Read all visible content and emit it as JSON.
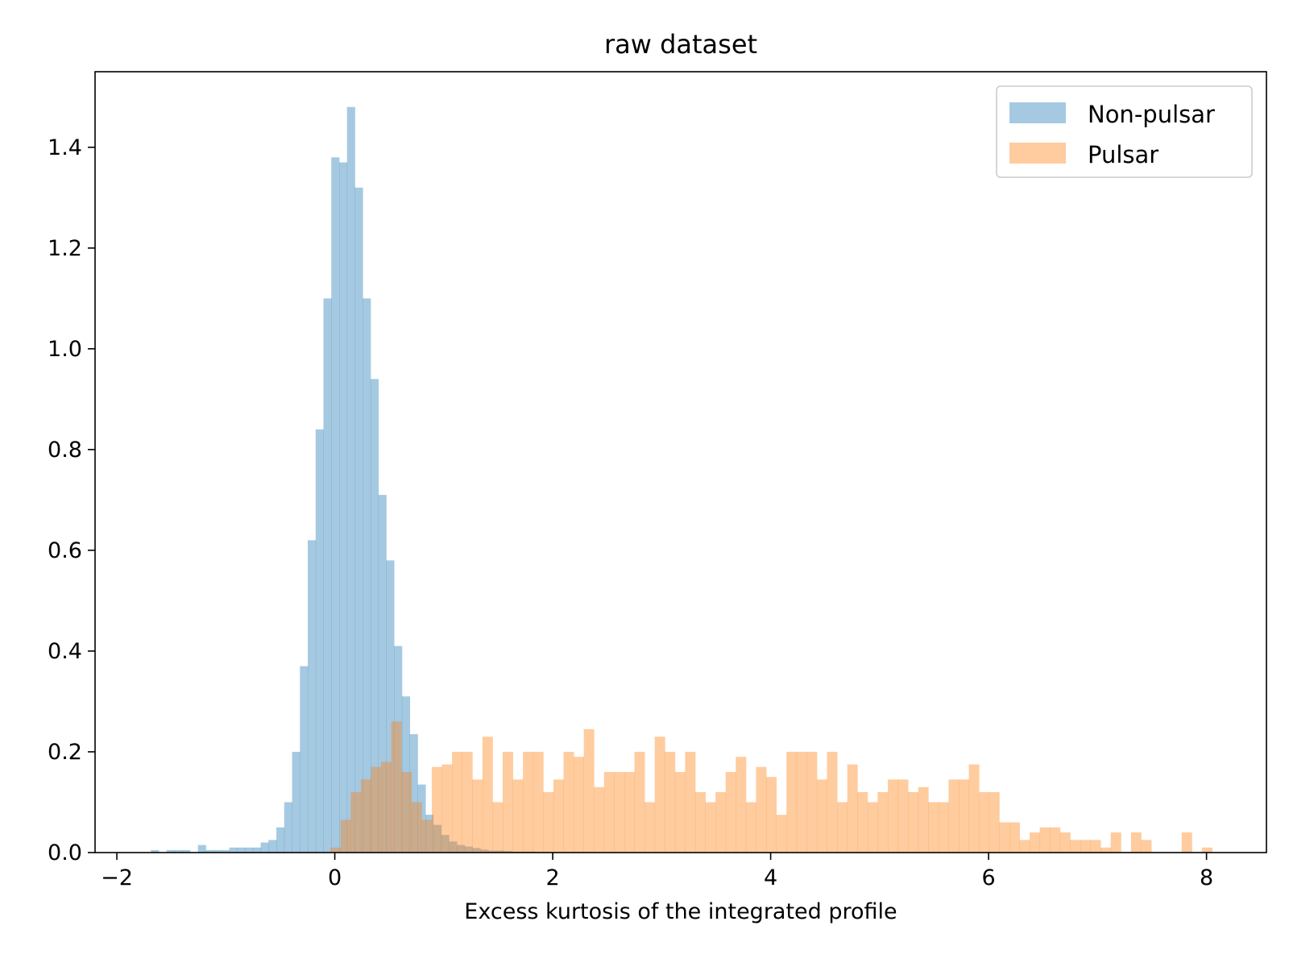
{
  "chart_data": {
    "type": "histogram",
    "title": "raw dataset",
    "xlabel": "Excess kurtosis of the integrated profile",
    "ylabel": "",
    "xlim": [
      -2.2,
      8.55
    ],
    "ylim": [
      0,
      1.55
    ],
    "xticks": [
      -2,
      0,
      2,
      4,
      6,
      8
    ],
    "xtick_labels": [
      "−2",
      "0",
      "2",
      "4",
      "6",
      "8"
    ],
    "yticks": [
      0.0,
      0.2,
      0.4,
      0.6,
      0.8,
      1.0,
      1.2,
      1.4
    ],
    "ytick_labels": [
      "0.0",
      "0.2",
      "0.4",
      "0.6",
      "0.8",
      "1.0",
      "1.2",
      "1.4"
    ],
    "grid": false,
    "legend_position": "top-right",
    "series": [
      {
        "name": "Non-pulsar",
        "color": "#1f77b4",
        "alpha": 0.4,
        "bin_start": -1.76,
        "bin_width": 0.072,
        "values": [
          0.0,
          0.005,
          0.0,
          0.005,
          0.005,
          0.005,
          0.0,
          0.015,
          0.005,
          0.005,
          0.005,
          0.01,
          0.01,
          0.01,
          0.01,
          0.02,
          0.025,
          0.05,
          0.1,
          0.2,
          0.37,
          0.62,
          0.84,
          1.1,
          1.38,
          1.37,
          1.48,
          1.32,
          1.1,
          0.94,
          0.71,
          0.58,
          0.41,
          0.31,
          0.235,
          0.135,
          0.075,
          0.055,
          0.035,
          0.022,
          0.015,
          0.012,
          0.009,
          0.006,
          0.004,
          0.004,
          0.003,
          0.002,
          0.002,
          0.002,
          0.0015,
          0.0015,
          0.001,
          0.001,
          0.001,
          0.001,
          0.001,
          0.0005,
          0.0005,
          0.0005
        ]
      },
      {
        "name": "Pulsar",
        "color": "#ff7f0e",
        "alpha": 0.4,
        "bin_start": -0.04,
        "bin_width": 0.093,
        "values": [
          0.01,
          0.065,
          0.12,
          0.145,
          0.17,
          0.18,
          0.26,
          0.16,
          0.1,
          0.065,
          0.17,
          0.175,
          0.2,
          0.2,
          0.145,
          0.23,
          0.1,
          0.2,
          0.145,
          0.2,
          0.2,
          0.12,
          0.145,
          0.2,
          0.19,
          0.245,
          0.13,
          0.16,
          0.16,
          0.16,
          0.2,
          0.1,
          0.23,
          0.2,
          0.16,
          0.2,
          0.12,
          0.1,
          0.12,
          0.16,
          0.19,
          0.1,
          0.17,
          0.15,
          0.075,
          0.2,
          0.2,
          0.2,
          0.145,
          0.2,
          0.1,
          0.175,
          0.12,
          0.1,
          0.12,
          0.145,
          0.145,
          0.12,
          0.13,
          0.1,
          0.1,
          0.145,
          0.145,
          0.175,
          0.12,
          0.12,
          0.06,
          0.06,
          0.025,
          0.04,
          0.05,
          0.05,
          0.04,
          0.025,
          0.025,
          0.025,
          0.01,
          0.04,
          0.0,
          0.04,
          0.025,
          0.0,
          0.0,
          0.0,
          0.04,
          0.0,
          0.01
        ]
      }
    ]
  }
}
